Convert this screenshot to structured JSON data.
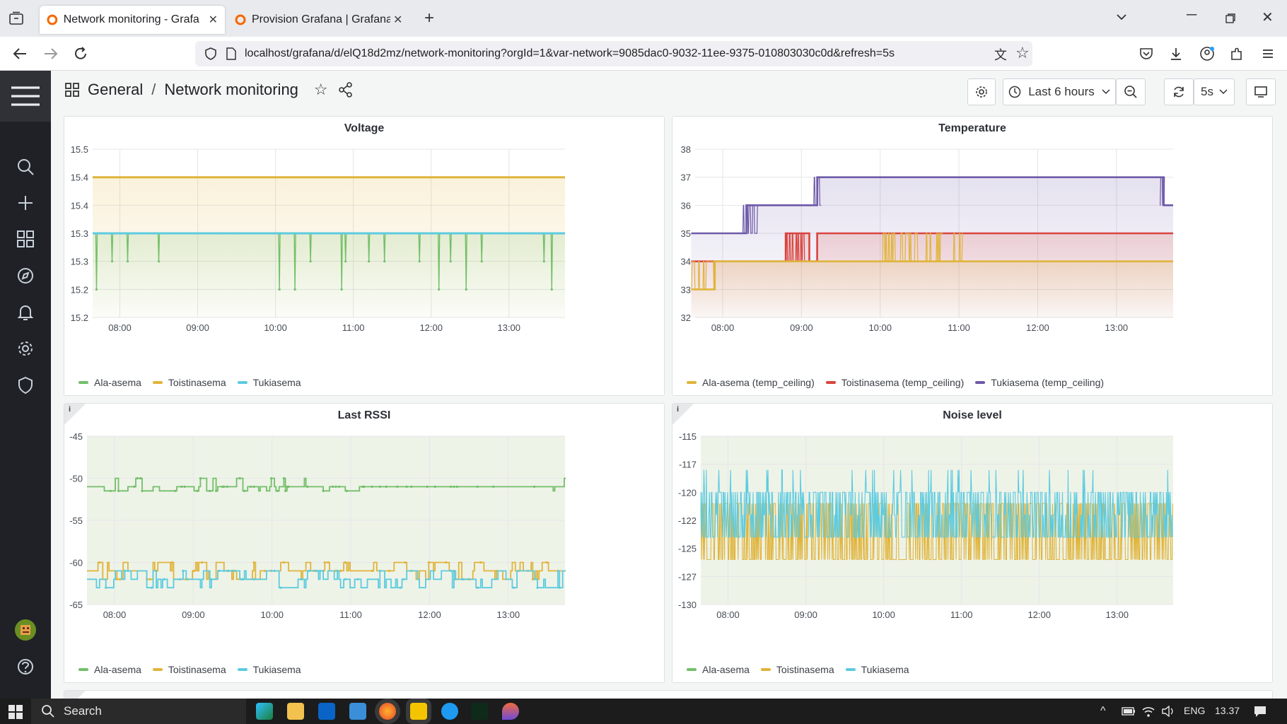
{
  "browser": {
    "tabs": [
      {
        "title": "Network monitoring - Grafana",
        "active": true
      },
      {
        "title": "Provision Grafana | Grafana docu",
        "active": false
      }
    ],
    "url": "localhost/grafana/d/elQ18d2mz/network-monitoring?orgId=1&var-network=9085dac0-9032-11ee-9375-010803030c0d&refresh=5s"
  },
  "grafana": {
    "breadcrumb": {
      "folder": "General",
      "separator": "/",
      "dashboard": "Network monitoring"
    },
    "time_range": "Last 6 hours",
    "refresh": "5s"
  },
  "colors": {
    "green": "#73bf69",
    "yellow": "#e0b43a",
    "cyan": "#5ccbe0",
    "red": "#d9443f",
    "purple": "#6e5aa8"
  },
  "panels": [
    {
      "id": "voltage",
      "title": "Voltage",
      "chart_data": {
        "type": "line",
        "title": "Voltage",
        "x_ticks": [
          "08:00",
          "09:00",
          "10:00",
          "11:00",
          "12:00",
          "13:00"
        ],
        "y_ticks": [
          "15.5",
          "15.4",
          "15.4",
          "15.3",
          "15.3",
          "15.2",
          "15.2"
        ],
        "ylim": [
          15.2,
          15.5
        ],
        "series": [
          {
            "name": "Ala-asema",
            "color": "green",
            "base": 15.3,
            "dips_to": 15.2
          },
          {
            "name": "Toistinasema",
            "color": "yellow",
            "base": 15.45
          },
          {
            "name": "Tukiasema",
            "color": "cyan",
            "base": 15.3
          }
        ],
        "legend": [
          "Ala-asema",
          "Toistinasema",
          "Tukiasema"
        ]
      }
    },
    {
      "id": "temperature",
      "title": "Temperature",
      "chart_data": {
        "type": "line",
        "title": "Temperature",
        "x_ticks": [
          "08:00",
          "09:00",
          "10:00",
          "11:00",
          "12:00",
          "13:00"
        ],
        "y_ticks": [
          "38",
          "37",
          "36",
          "35",
          "34",
          "33",
          "32"
        ],
        "ylim": [
          32,
          38
        ],
        "series": [
          {
            "name": "Ala-asema (temp_ceiling)",
            "color": "yellow",
            "steps": [
              [
                7.6,
                33
              ],
              [
                7.9,
                34
              ],
              [
                13.7,
                34
              ]
            ]
          },
          {
            "name": "Toistinasema (temp_ceiling)",
            "color": "red",
            "steps": [
              [
                7.6,
                34
              ],
              [
                8.8,
                35
              ],
              [
                9.1,
                34
              ],
              [
                9.2,
                35
              ],
              [
                13.7,
                35
              ]
            ]
          },
          {
            "name": "Tukiasema (temp_ceiling)",
            "color": "purple",
            "steps": [
              [
                7.6,
                35
              ],
              [
                8.3,
                36
              ],
              [
                9.2,
                37
              ],
              [
                13.6,
                36
              ]
            ]
          }
        ],
        "legend": [
          "Ala-asema (temp_ceiling)",
          "Toistinasema (temp_ceiling)",
          "Tukiasema (temp_ceiling)"
        ]
      }
    },
    {
      "id": "rssi",
      "title": "Last RSSI",
      "info": "i",
      "chart_data": {
        "type": "line",
        "title": "Last RSSI",
        "x_ticks": [
          "08:00",
          "09:00",
          "10:00",
          "11:00",
          "12:00",
          "13:00"
        ],
        "y_ticks": [
          "-45",
          "-50",
          "-55",
          "-60",
          "-65"
        ],
        "ylim": [
          -65,
          -45
        ],
        "series": [
          {
            "name": "Ala-asema",
            "color": "green",
            "base": -51
          },
          {
            "name": "Toistinasema",
            "color": "yellow",
            "base": -61
          },
          {
            "name": "Tukiasema",
            "color": "cyan",
            "base": -62
          }
        ],
        "legend": [
          "Ala-asema",
          "Toistinasema",
          "Tukiasema"
        ]
      }
    },
    {
      "id": "noise",
      "title": "Noise level",
      "info": "i",
      "chart_data": {
        "type": "line",
        "title": "Noise level",
        "x_ticks": [
          "08:00",
          "09:00",
          "10:00",
          "11:00",
          "12:00",
          "13:00"
        ],
        "y_ticks": [
          "-115",
          "-117",
          "-120",
          "-122",
          "-125",
          "-127",
          "-130"
        ],
        "ylim": [
          -130,
          -115
        ],
        "series": [
          {
            "name": "Ala-asema",
            "color": "green"
          },
          {
            "name": "Toistinasema",
            "color": "yellow",
            "range": [
              -126,
              -121
            ]
          },
          {
            "name": "Tukiasema",
            "color": "cyan",
            "range": [
              -124,
              -118
            ]
          }
        ],
        "legend": [
          "Ala-asema",
          "Toistinasema",
          "Tukiasema"
        ]
      }
    }
  ],
  "taskbar": {
    "search_label": "Search",
    "language": "ENG",
    "clock": "13.37"
  }
}
